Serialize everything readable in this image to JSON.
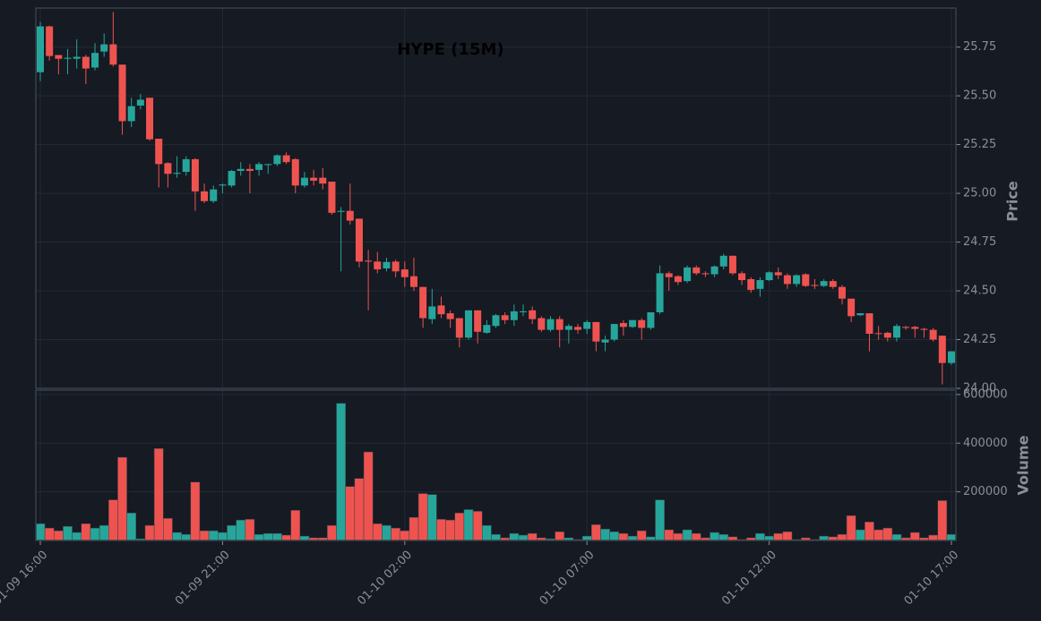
{
  "chart_data": {
    "type": "candlestick",
    "title": "HYPE (15M)",
    "ylabel": "Price",
    "x": [
      "01-09 16:00",
      null,
      null,
      null,
      null,
      null,
      null,
      null,
      null,
      null,
      null,
      null,
      null,
      null,
      null,
      null,
      null,
      null,
      null,
      null,
      "01-09 21:00",
      null,
      null,
      null,
      null,
      null,
      null,
      null,
      null,
      null,
      null,
      null,
      null,
      null,
      null,
      null,
      null,
      null,
      null,
      null,
      "01-10 02:00",
      null,
      null,
      null,
      null,
      null,
      null,
      null,
      null,
      null,
      null,
      null,
      null,
      null,
      null,
      null,
      null,
      null,
      null,
      null,
      "01-10 07:00",
      null,
      null,
      null,
      null,
      null,
      null,
      null,
      null,
      null,
      null,
      null,
      null,
      null,
      null,
      null,
      null,
      null,
      null,
      null,
      "01-10 12:00",
      null,
      null,
      null,
      null,
      null,
      null,
      null,
      null,
      null,
      null,
      null,
      null,
      null,
      null,
      null,
      null,
      null,
      null,
      null,
      "01-10 17:00"
    ],
    "open": [
      25.621,
      25.856,
      25.709,
      25.69,
      25.69,
      25.7,
      25.645,
      25.727,
      25.764,
      25.66,
      25.37,
      25.45,
      25.49,
      25.28,
      25.155,
      25.1,
      25.11,
      25.175,
      25.01,
      24.96,
      25.04,
      25.04,
      25.115,
      25.125,
      25.12,
      25.145,
      25.15,
      25.195,
      25.175,
      25.04,
      25.08,
      25.08,
      25.06,
      24.905,
      24.91,
      24.87,
      24.655,
      24.65,
      24.615,
      24.65,
      24.61,
      24.575,
      24.52,
      24.355,
      24.425,
      24.385,
      24.36,
      24.26,
      24.4,
      24.285,
      24.32,
      24.375,
      24.35,
      24.39,
      24.4,
      24.36,
      24.3,
      24.355,
      24.3,
      24.315,
      24.305,
      24.34,
      24.235,
      24.25,
      24.335,
      24.315,
      24.35,
      24.31,
      24.39,
      24.59,
      24.575,
      24.55,
      24.62,
      24.59,
      24.585,
      24.625,
      24.68,
      24.59,
      24.56,
      24.51,
      24.555,
      24.595,
      24.58,
      24.535,
      24.585,
      24.53,
      24.525,
      24.55,
      24.52,
      24.46,
      24.375,
      24.385,
      24.283,
      24.285,
      24.26,
      24.315,
      24.315,
      24.305,
      24.3,
      24.27,
      24.13
    ],
    "high": [
      25.879,
      25.86,
      25.71,
      25.74,
      25.79,
      25.71,
      25.77,
      25.82,
      25.93,
      25.66,
      25.49,
      25.51,
      25.49,
      25.28,
      25.16,
      25.19,
      25.19,
      25.18,
      25.05,
      25.04,
      25.05,
      25.12,
      25.16,
      25.15,
      25.16,
      25.15,
      25.2,
      25.21,
      25.18,
      25.11,
      25.12,
      25.13,
      25.06,
      24.93,
      25.05,
      24.87,
      24.71,
      24.7,
      24.67,
      24.66,
      24.65,
      24.67,
      24.52,
      24.51,
      24.47,
      24.4,
      24.36,
      24.4,
      24.4,
      24.35,
      24.38,
      24.39,
      24.43,
      24.43,
      24.42,
      24.37,
      24.37,
      24.37,
      24.33,
      24.33,
      24.35,
      24.34,
      24.27,
      24.33,
      24.35,
      24.35,
      24.36,
      24.39,
      24.63,
      24.6,
      24.58,
      24.63,
      24.63,
      24.6,
      24.63,
      24.69,
      24.68,
      24.6,
      24.57,
      24.57,
      24.6,
      24.62,
      24.59,
      24.585,
      24.59,
      24.56,
      24.56,
      24.56,
      24.53,
      24.46,
      24.385,
      24.385,
      24.32,
      24.29,
      24.33,
      24.32,
      24.32,
      24.31,
      24.31,
      24.27,
      24.19
    ],
    "low": [
      25.575,
      25.68,
      25.61,
      25.61,
      25.64,
      25.56,
      25.63,
      25.7,
      25.65,
      25.3,
      25.34,
      25.43,
      25.27,
      25.03,
      25.03,
      25.08,
      25.09,
      24.91,
      24.95,
      24.95,
      25.0,
      25.03,
      25.09,
      25.0,
      25.09,
      25.1,
      25.14,
      25.15,
      25.0,
      25.03,
      25.04,
      25.02,
      24.89,
      24.6,
      24.84,
      24.62,
      24.4,
      24.59,
      24.6,
      24.57,
      24.52,
      24.5,
      24.31,
      24.33,
      24.36,
      24.31,
      24.21,
      24.25,
      24.23,
      24.28,
      24.31,
      24.33,
      24.32,
      24.37,
      24.33,
      24.29,
      24.29,
      24.21,
      24.23,
      24.28,
      24.28,
      24.19,
      24.19,
      24.24,
      24.27,
      24.31,
      24.25,
      24.3,
      24.38,
      24.5,
      24.53,
      24.54,
      24.58,
      24.57,
      24.57,
      24.61,
      24.58,
      24.53,
      24.49,
      24.47,
      24.55,
      24.56,
      24.51,
      24.52,
      24.52,
      24.51,
      24.52,
      24.51,
      24.43,
      24.34,
      24.37,
      24.19,
      24.25,
      24.24,
      24.24,
      24.3,
      24.26,
      24.26,
      24.24,
      24.02,
      24.12
    ],
    "close": [
      25.856,
      25.704,
      25.69,
      25.695,
      25.7,
      25.64,
      25.72,
      25.764,
      25.66,
      25.37,
      25.447,
      25.48,
      25.277,
      25.15,
      25.1,
      25.105,
      25.175,
      25.01,
      24.96,
      25.02,
      25.045,
      25.115,
      25.125,
      25.115,
      25.15,
      25.15,
      25.195,
      25.16,
      25.04,
      25.08,
      25.065,
      25.05,
      24.9,
      24.91,
      24.86,
      24.65,
      24.65,
      24.61,
      24.648,
      24.6,
      24.57,
      24.52,
      24.36,
      24.42,
      24.38,
      24.355,
      24.26,
      24.4,
      24.29,
      24.325,
      24.375,
      24.35,
      24.395,
      24.395,
      24.355,
      24.3,
      24.355,
      24.3,
      24.32,
      24.3,
      24.34,
      24.24,
      24.25,
      24.33,
      24.315,
      24.35,
      24.31,
      24.39,
      24.59,
      24.57,
      24.545,
      24.62,
      24.59,
      24.585,
      24.625,
      24.68,
      24.59,
      24.555,
      24.505,
      24.555,
      24.595,
      24.58,
      24.535,
      24.58,
      24.525,
      24.525,
      24.55,
      24.52,
      24.46,
      24.37,
      24.385,
      24.28,
      24.28,
      24.26,
      24.32,
      24.31,
      24.305,
      24.3,
      24.25,
      24.13,
      24.19
    ],
    "ylim": [
      24.0,
      25.95
    ],
    "yticks": [
      {
        "value": 24,
        "label": "24.00"
      },
      24.25,
      {
        "value": 24.5,
        "label": "24.50"
      },
      24.75,
      {
        "value": 25,
        "label": "25.00"
      },
      25.25,
      {
        "value": 25.5,
        "label": "25.50"
      },
      25.75
    ],
    "up_color": "#26a69a",
    "down_color": "#ef5350",
    "grid": true,
    "volume": {
      "ylabel": "Volume",
      "ylim": [
        0,
        618000
      ],
      "yticks": [
        200000,
        400000,
        600000
      ],
      "values": [
        69000,
        51000,
        40000,
        58000,
        33000,
        69000,
        51000,
        62000,
        167000,
        342000,
        113000,
        7000,
        62000,
        378000,
        91000,
        33000,
        25000,
        240000,
        40000,
        40000,
        33000,
        62000,
        84000,
        87000,
        25000,
        29000,
        29000,
        22000,
        124000,
        18000,
        11000,
        11000,
        62000,
        564000,
        222000,
        255000,
        364000,
        69000,
        62000,
        51000,
        40000,
        95000,
        193000,
        189000,
        87000,
        84000,
        113000,
        127000,
        120000,
        62000,
        25000,
        11000,
        29000,
        22000,
        29000,
        11000,
        7000,
        36000,
        11000,
        4000,
        18000,
        65000,
        47000,
        36000,
        29000,
        18000,
        40000,
        15000,
        167000,
        44000,
        29000,
        44000,
        29000,
        11000,
        33000,
        25000,
        15000,
        4000,
        11000,
        29000,
        18000,
        29000,
        36000,
        4000,
        11000,
        4000,
        18000,
        15000,
        25000,
        102000,
        44000,
        76000,
        44000,
        51000,
        25000,
        11000,
        33000,
        11000,
        22000,
        164000,
        25000
      ]
    }
  }
}
